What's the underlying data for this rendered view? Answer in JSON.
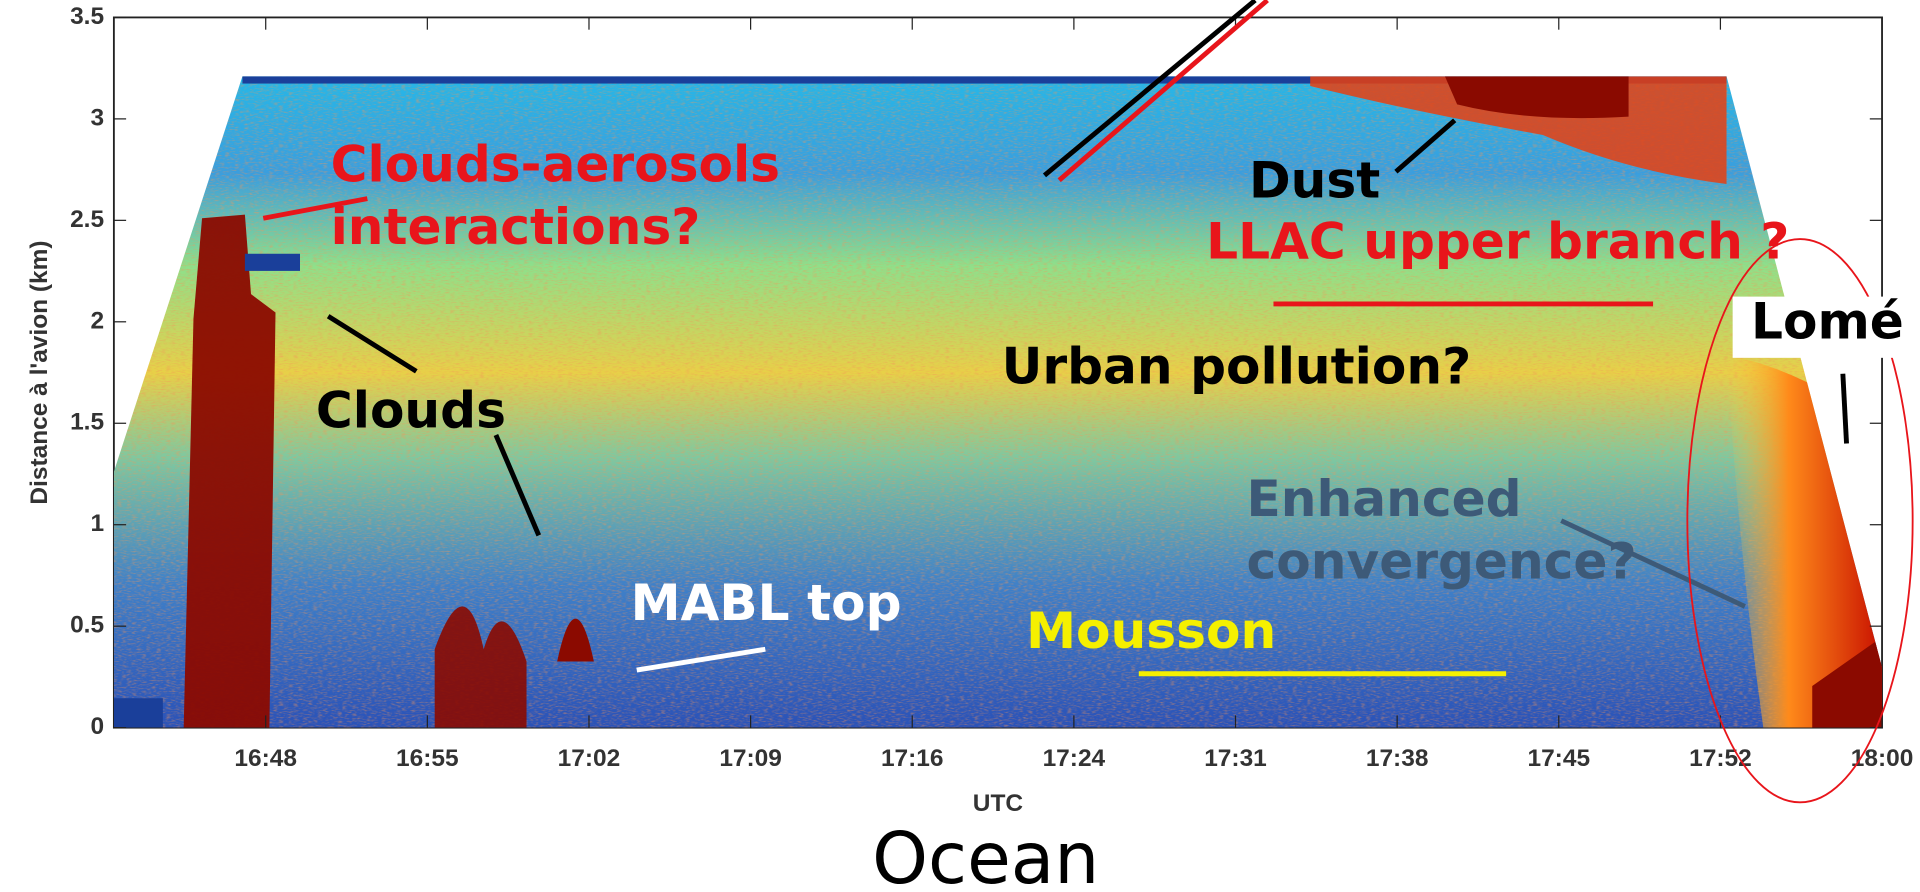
{
  "chart_data": {
    "type": "lidar-curtain",
    "x_label": "UTC",
    "y_label": "Distance à l'avion (km)",
    "caption": "Ocean",
    "ylim": [
      0,
      3.5
    ],
    "yticks": [
      0,
      0.5,
      1,
      1.5,
      2,
      2.5,
      3,
      3.5
    ],
    "xticks": [
      "16:48",
      "16:55",
      "17:02",
      "17:09",
      "17:16",
      "17:24",
      "17:31",
      "17:38",
      "17:45",
      "17:52",
      "18:00"
    ],
    "annotations": [
      {
        "lines": [
          "Clouds-aerosols",
          "interactions?"
        ],
        "color": "#e8151b"
      },
      {
        "lines": [
          "Dust"
        ],
        "color": "#000000"
      },
      {
        "lines": [
          "LLAC upper branch ?"
        ],
        "color": "#e8151b"
      },
      {
        "lines": [
          "Lomé"
        ],
        "color": "#000000"
      },
      {
        "lines": [
          "Clouds"
        ],
        "color": "#000000"
      },
      {
        "lines": [
          "Urban pollution?"
        ],
        "color": "#000000"
      },
      {
        "lines": [
          "Enhanced",
          "convergence?"
        ],
        "color": "#3d5a78"
      },
      {
        "lines": [
          "MABL top"
        ],
        "color": "#ffffff"
      },
      {
        "lines": [
          "Mousson"
        ],
        "color": "#f5f000"
      }
    ]
  }
}
